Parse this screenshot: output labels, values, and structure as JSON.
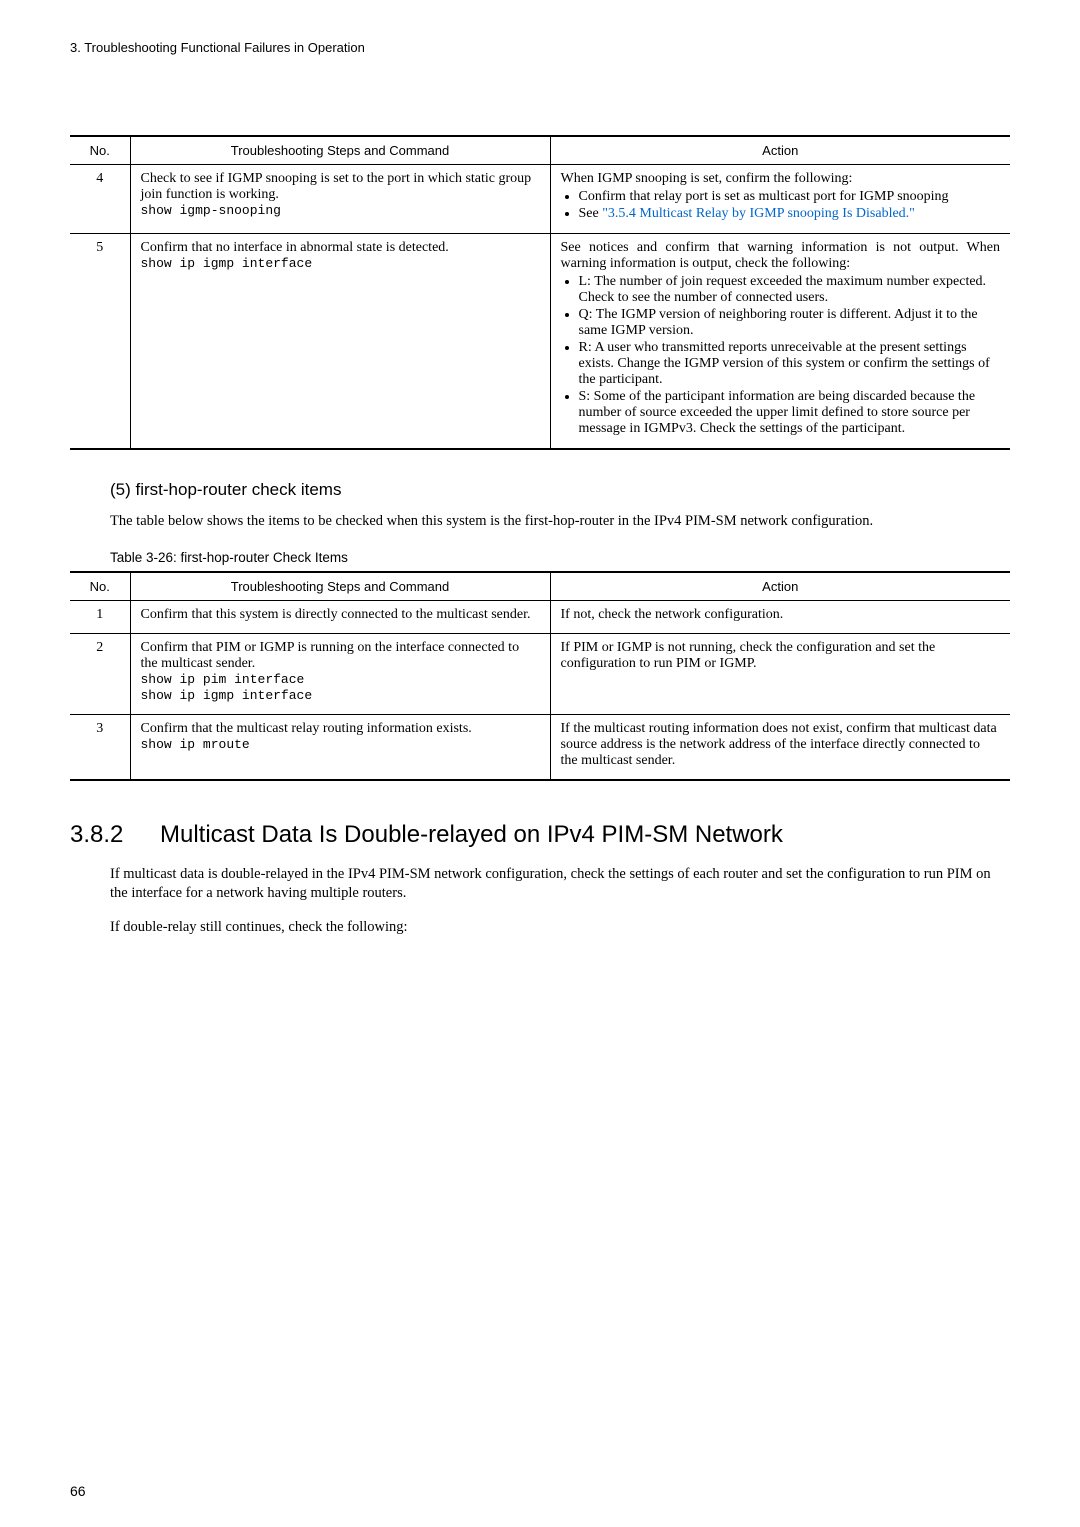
{
  "header": {
    "chapter": "3.   Troubleshooting Functional Failures in Operation"
  },
  "table1": {
    "headers": {
      "no": "No.",
      "steps": "Troubleshooting Steps and Command",
      "action": "Action"
    },
    "rows": [
      {
        "no": "4",
        "step_text": "Check to see if IGMP snooping is set to the port in which static group join function is working.",
        "step_cmd": "show igmp-snooping",
        "action_intro": "When IGMP snooping is set, confirm the following:",
        "action_items": [
          {
            "text": "Confirm that relay port is set as multicast port for IGMP snooping"
          },
          {
            "prefix": "See ",
            "link": "\"3.5.4 Multicast Relay by IGMP snooping Is Disabled.\""
          }
        ]
      },
      {
        "no": "5",
        "step_text": "Confirm that no interface in abnormal state is detected.",
        "step_cmd": "show ip igmp interface",
        "action_intro": "See notices and confirm that warning information is not output. When warning information is output, check the following:",
        "action_items": [
          {
            "text": "L: The number of join request exceeded the maximum number expected. Check to see the number of connected users."
          },
          {
            "text": "Q: The IGMP version of neighboring router is different. Adjust it to the same IGMP version."
          },
          {
            "text": "R: A user who transmitted reports unreceivable at the present settings exists. Change the IGMP version of this system or confirm the settings of the participant."
          },
          {
            "text": "S: Some of the participant information are being discarded because the number of source exceeded the upper limit defined to store source per message in IGMPv3. Check the settings of the participant."
          }
        ]
      }
    ]
  },
  "section5": {
    "heading": "(5)   first-hop-router check items",
    "para": "The table below shows the items to be checked when this system is the first-hop-router in the IPv4 PIM-SM network configuration.",
    "table_caption": "Table 3-26: first-hop-router Check Items"
  },
  "table2": {
    "headers": {
      "no": "No.",
      "steps": "Troubleshooting Steps and Command",
      "action": "Action"
    },
    "rows": [
      {
        "no": "1",
        "step_text": "Confirm that this system is directly connected to the multicast sender.",
        "step_cmd": "",
        "action": "If not, check the network configuration."
      },
      {
        "no": "2",
        "step_text": "Confirm that PIM or IGMP is running on the interface connected to the multicast sender.",
        "step_cmd": "show ip pim interface\nshow ip igmp interface",
        "action": "If PIM or IGMP is not running, check the configuration and set the configuration to run PIM or IGMP."
      },
      {
        "no": "3",
        "step_text": "Confirm that the multicast relay routing information exists.",
        "step_cmd": "show ip mroute",
        "action": "If the multicast routing information does not exist, confirm that multicast data source address is the network address of the interface directly connected to the multicast sender."
      }
    ]
  },
  "section382": {
    "num": "3.8.2",
    "title": "Multicast Data Is Double-relayed on IPv4 PIM-SM Network",
    "para1": "If multicast data is double-relayed in the IPv4 PIM-SM network configuration, check the settings of each router and set the configuration to run PIM on the interface for a network having multiple routers.",
    "para2": "If double-relay still continues, check the following:"
  },
  "page_number": "66"
}
